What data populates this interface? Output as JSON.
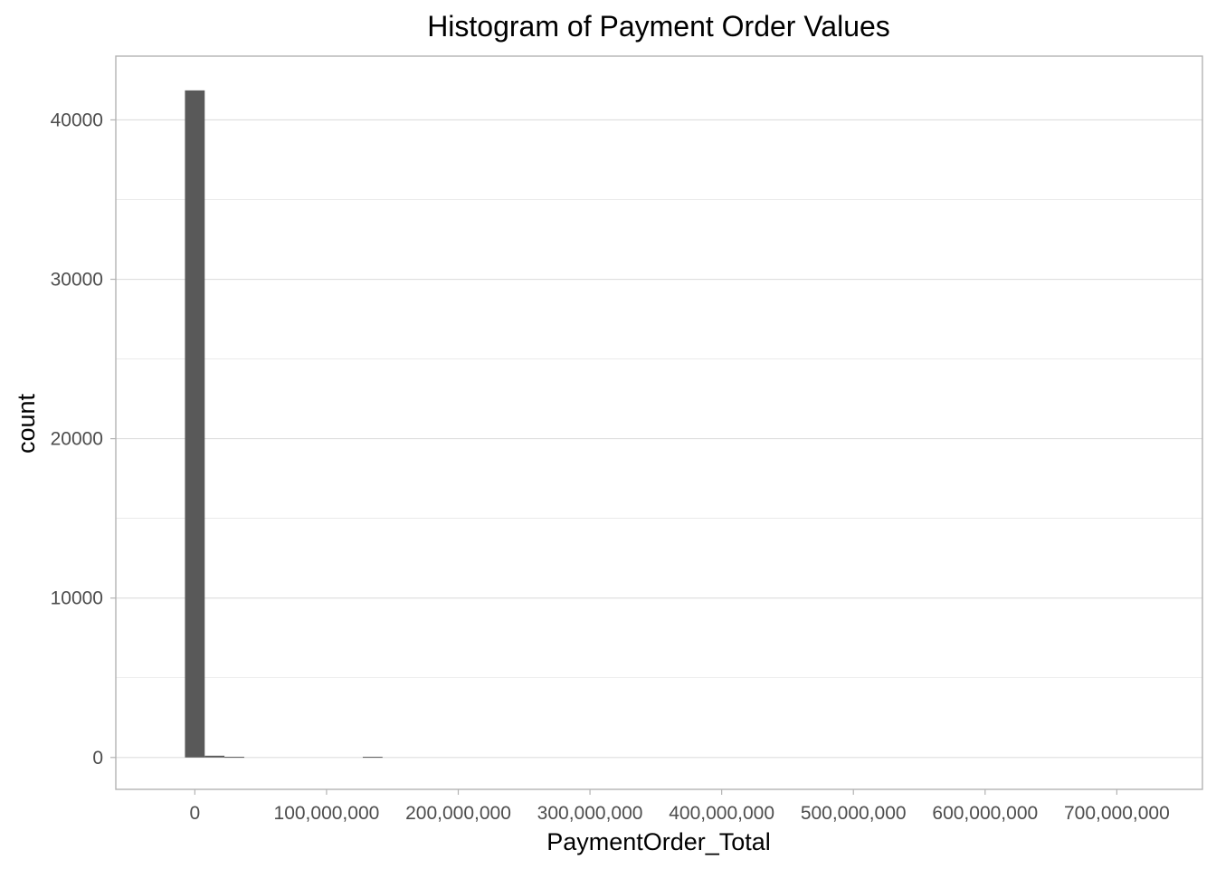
{
  "chart_data": {
    "type": "bar",
    "title": "Histogram of Payment Order Values",
    "xlabel": "PaymentOrder_Total",
    "ylabel": "count",
    "xlim": [
      -60000000,
      765000000
    ],
    "ylim": [
      -2000,
      44000
    ],
    "x_ticks": [
      0,
      100000000,
      200000000,
      300000000,
      400000000,
      500000000,
      600000000,
      700000000
    ],
    "x_tick_labels": [
      "0",
      "100,000,000",
      "200,000,000",
      "300,000,000",
      "400,000,000",
      "500,000,000",
      "600,000,000",
      "700,000,000"
    ],
    "y_ticks": [
      0,
      10000,
      20000,
      30000,
      40000
    ],
    "y_tick_labels": [
      "0",
      "10000",
      "20000",
      "30000",
      "40000"
    ],
    "bin_width": 15000000,
    "bins": [
      {
        "x": 0,
        "count": 41850
      },
      {
        "x": 15000000,
        "count": 110
      },
      {
        "x": 30000000,
        "count": 40
      },
      {
        "x": 135000000,
        "count": 40
      }
    ],
    "grid": true,
    "legend": "none",
    "colors": {
      "bar": "#595959",
      "grid": "#dedede",
      "border": "#b3b3b3"
    }
  }
}
